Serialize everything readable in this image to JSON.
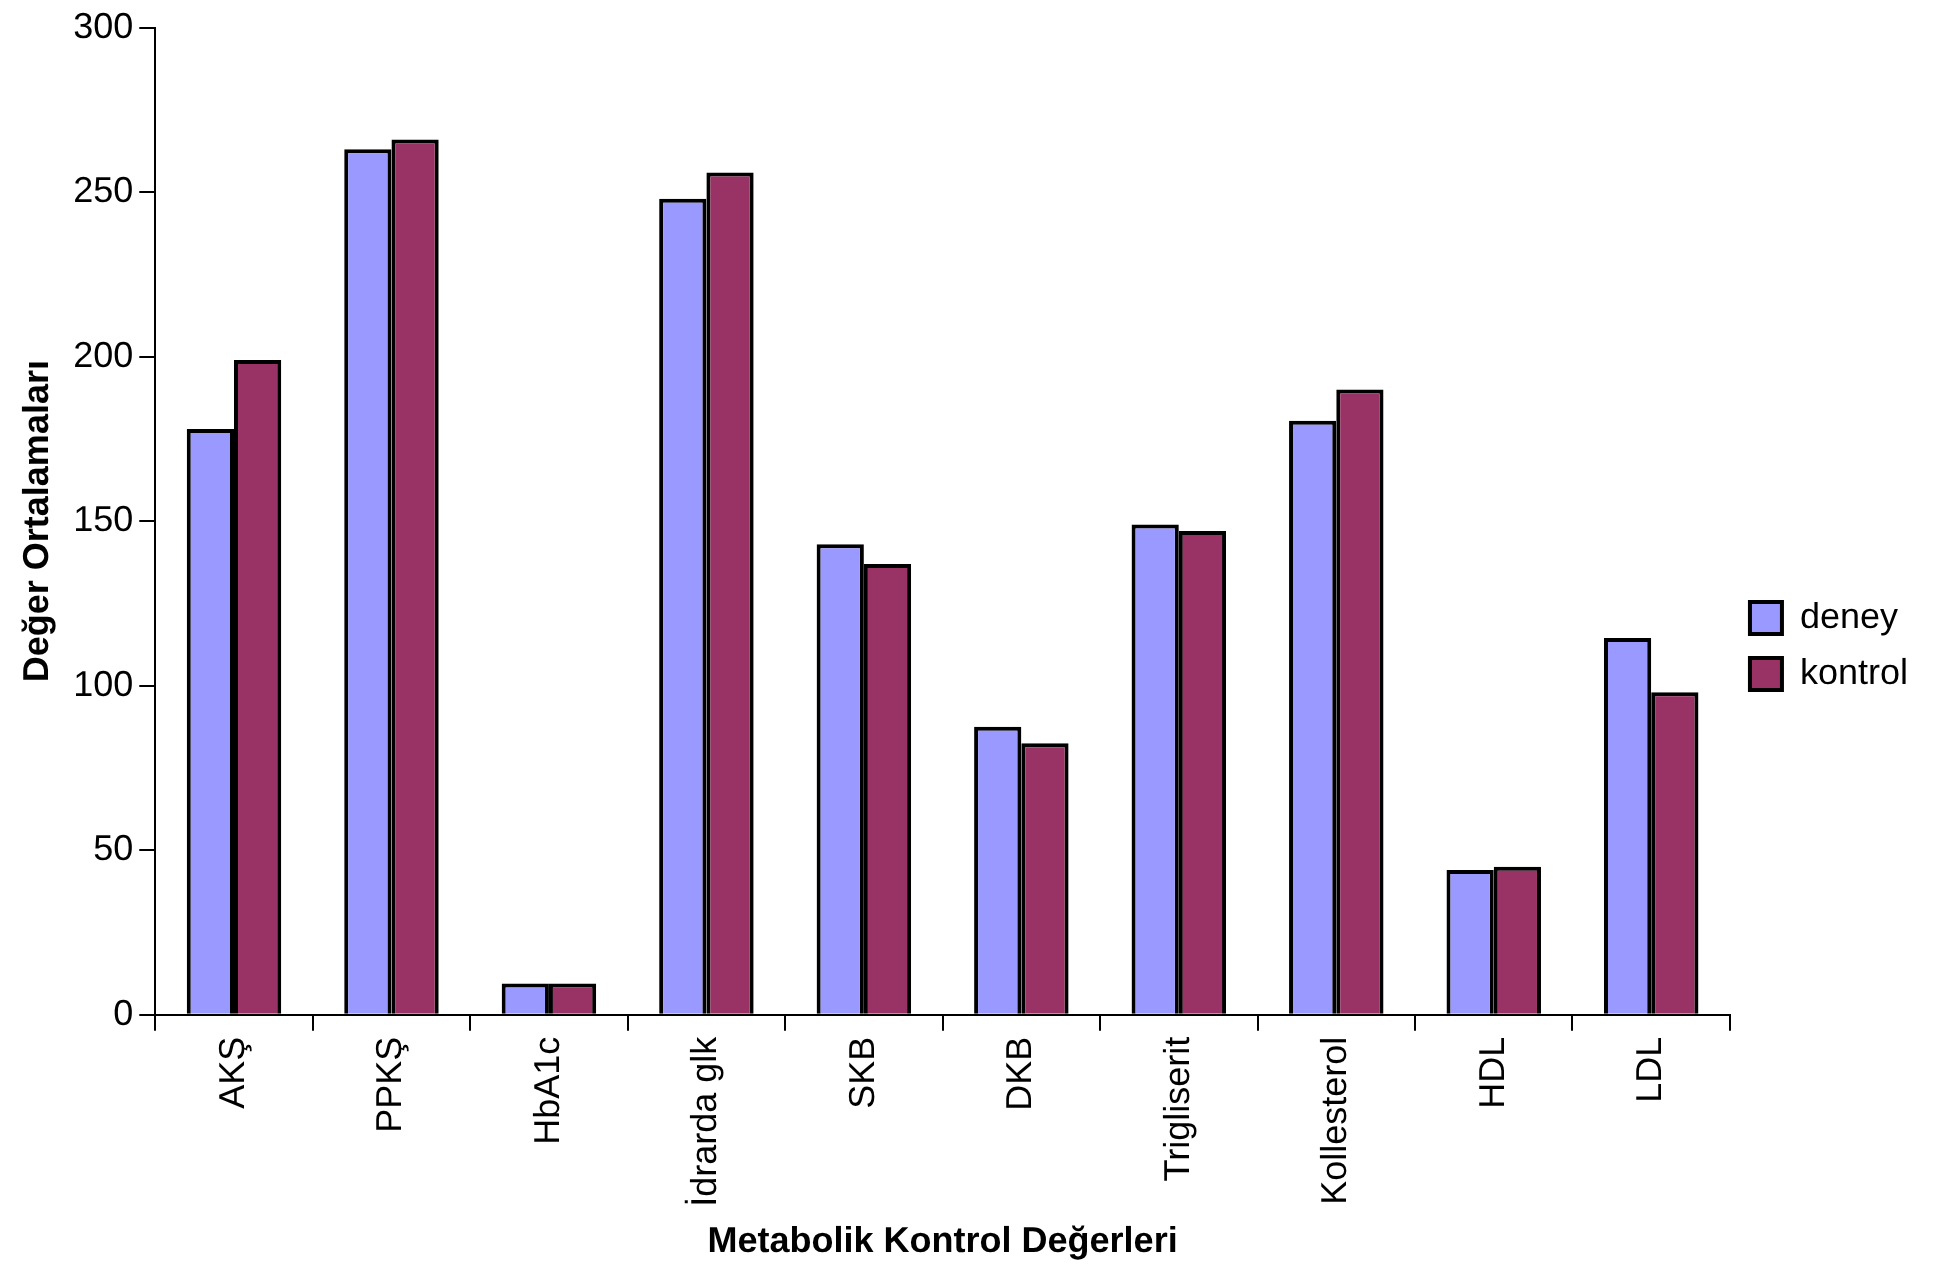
{
  "chart_data": {
    "type": "bar",
    "xlabel": "Metabolik Kontrol Değerleri",
    "ylabel": "Değer Ortalamaları",
    "categories": [
      "AKŞ",
      "PPKŞ",
      "HbA1c",
      "İdrarda glk",
      "SKB",
      "DKB",
      "Trigliserit",
      "Kollesterol",
      "HDL",
      "LDL"
    ],
    "series": [
      {
        "name": "deney",
        "color": "#9999ff",
        "values": [
          178,
          263,
          9.5,
          248,
          143,
          87.5,
          149,
          180.5,
          44,
          114.5
        ]
      },
      {
        "name": "kontrol",
        "color": "#993366",
        "values": [
          199,
          266,
          9.5,
          256,
          137,
          82.5,
          147,
          190,
          45,
          98
        ]
      }
    ],
    "ylim": [
      0,
      300
    ],
    "yticks": [
      0,
      50,
      100,
      150,
      200,
      250,
      300
    ],
    "grid": false,
    "legend": "right"
  }
}
